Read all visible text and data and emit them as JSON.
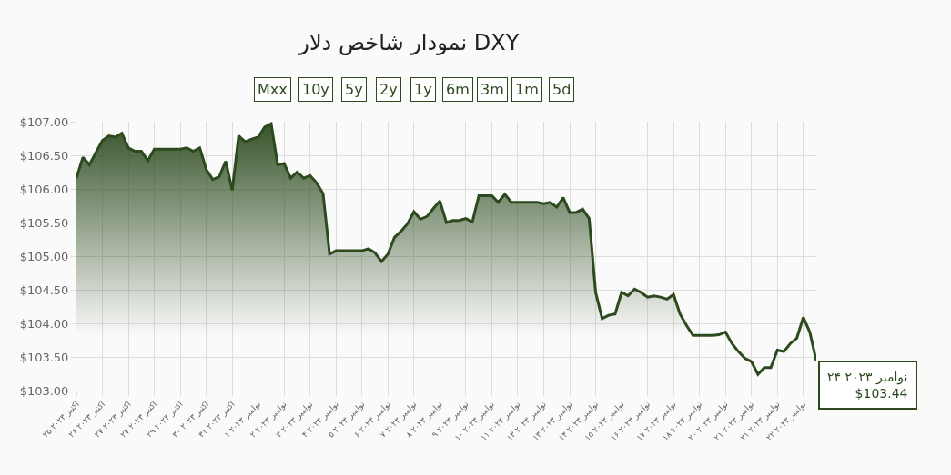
{
  "chart_data": {
    "type": "area",
    "title": "نمودار شاخص دلار DXY",
    "categories": [
      "۲۵ اکتبر ۲۰۲۳",
      null,
      null,
      null,
      "۲۶ اکتبر ۲۰۲۳",
      null,
      null,
      null,
      "۲۷ اکتبر ۲۰۲۳",
      null,
      null,
      null,
      "۲۷ اکتبر ۲۰۲۳",
      null,
      null,
      null,
      "۲۹ اکتبر ۲۰۲۳",
      null,
      null,
      null,
      "۳۰ اکتبر ۲۰۲۳",
      null,
      null,
      null,
      "۳۱ اکتبر ۲۰۲۳",
      null,
      null,
      null,
      "۱ نوامبر ۲۰۲۳",
      null,
      null,
      null,
      "۲ نوامبر ۲۰۲۳",
      null,
      null,
      null,
      "۳ نوامبر ۲۰۲۳",
      null,
      null,
      null,
      "۴ نوامبر ۲۰۲۳",
      null,
      null,
      null,
      "۵ نوامبر ۲۰۲۳",
      null,
      null,
      null,
      "۶ نوامبر ۲۰۲۳",
      null,
      null,
      null,
      "۷ نوامبر ۲۰۲۳",
      null,
      null,
      null,
      "۸ نوامبر ۲۰۲۳",
      null,
      null,
      null,
      "۹ نوامبر ۲۰۲۳",
      null,
      null,
      null,
      "۱۰ نوامبر ۲۰۲۳",
      null,
      null,
      null,
      "۱۱ نوامبر ۲۰۲۳",
      null,
      null,
      null,
      "۱۳ نوامبر ۲۰۲۳",
      null,
      null,
      null,
      "۱۳ نوامبر ۲۰۲۳",
      null,
      null,
      null,
      "۱۴ نوامبر ۲۰۲۳",
      null,
      null,
      null,
      "۱۵ نوامبر ۲۰۲۳",
      null,
      null,
      null,
      "۱۶ نوامبر ۲۰۲۳",
      null,
      null,
      null,
      "۱۷ نوامبر ۲۰۲۳",
      null,
      null,
      null,
      "۱۸ نوامبر ۲۰۲۳",
      null,
      null,
      null,
      "۲۰ نوامبر ۲۰۲۳",
      null,
      null,
      null,
      "۲۱ نوامبر ۲۰۲۳",
      null,
      null,
      null,
      "۲۱ نوامبر ۲۰۲۳",
      null,
      null,
      null,
      "۲۲ نوامبر ۲۰۲۳",
      null,
      null
    ],
    "series": [
      {
        "color": "#2d4a1e",
        "values": [
          106.16,
          106.47,
          106.36,
          106.54,
          106.72,
          106.79,
          106.77,
          106.83,
          106.61,
          106.56,
          106.56,
          106.42,
          106.59,
          106.59,
          106.59,
          106.59,
          106.59,
          106.61,
          106.56,
          106.61,
          106.29,
          106.14,
          106.18,
          106.41,
          105.98,
          106.79,
          106.7,
          106.74,
          106.77,
          106.92,
          106.97,
          106.36,
          106.38,
          106.16,
          106.25,
          106.16,
          106.2,
          106.09,
          105.93,
          105.03,
          105.08,
          105.08,
          105.08,
          105.08,
          105.08,
          105.11,
          105.05,
          104.92,
          105.03,
          105.28,
          105.37,
          105.48,
          105.66,
          105.55,
          105.59,
          105.71,
          105.82,
          105.5,
          105.53,
          105.53,
          105.56,
          105.51,
          105.9,
          105.9,
          105.9,
          105.8,
          105.92,
          105.8,
          105.8,
          105.8,
          105.8,
          105.8,
          105.78,
          105.8,
          105.73,
          105.87,
          105.65,
          105.65,
          105.7,
          105.56,
          104.46,
          104.07,
          104.12,
          104.14,
          104.46,
          104.41,
          104.51,
          104.46,
          104.39,
          104.41,
          104.39,
          104.36,
          104.43,
          104.14,
          103.97,
          103.82,
          103.82,
          103.82,
          103.82,
          103.83,
          103.87,
          103.7,
          103.58,
          103.48,
          103.43,
          103.24,
          103.34,
          103.34,
          103.6,
          103.58,
          103.7,
          103.78,
          104.09,
          103.87,
          103.44
        ]
      }
    ],
    "ylim": [
      103,
      107
    ],
    "yticks": [
      {
        "value": 103,
        "label": "$103.00"
      },
      {
        "value": 103.5,
        "label": "$103.50"
      },
      {
        "value": 104,
        "label": "$104.00"
      },
      {
        "value": 104.5,
        "label": "$104.50"
      },
      {
        "value": 105,
        "label": "$105.00"
      },
      {
        "value": 105.5,
        "label": "$105.50"
      },
      {
        "value": 106,
        "label": "$106.00"
      },
      {
        "value": 106.5,
        "label": "$106.50"
      },
      {
        "value": 107,
        "label": "$107.00"
      }
    ],
    "grid": true,
    "annotations": [
      "Mxx",
      "10y",
      "5y",
      "2y",
      "1y",
      "6m",
      "3m",
      "1m",
      "5d",
      "۲۴ نوامبر ۲۰۲۳\n$103.44"
    ]
  }
}
